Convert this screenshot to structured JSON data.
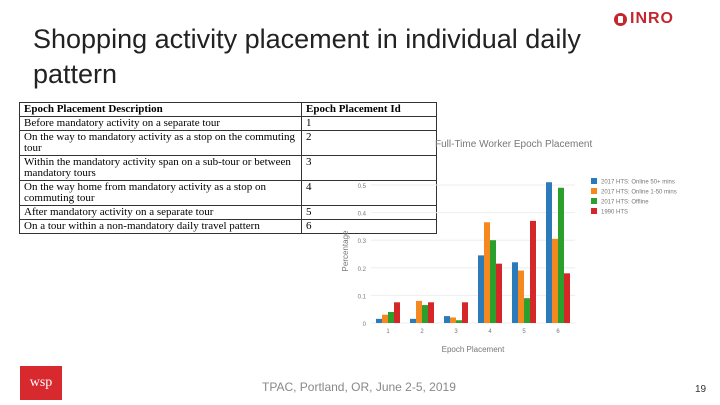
{
  "slide": {
    "title": "Shopping activity placement in individual daily pattern",
    "logo_text": "INRO",
    "wsp_logo_text": "wsp",
    "footer": "TPAC, Portland, OR, June 2-5, 2019",
    "page_number": "19"
  },
  "table": {
    "headers": [
      "Epoch Placement Description",
      "Epoch Placement Id"
    ],
    "rows": [
      {
        "desc": "Before mandatory activity on a separate tour",
        "id": "1"
      },
      {
        "desc": "On the way to mandatory activity as a stop on the commuting tour",
        "id": "2"
      },
      {
        "desc": "Within the mandatory activity span on a sub-tour or between mandatory tours",
        "id": "3"
      },
      {
        "desc": "On the way home from mandatory activity as a stop on commuting tour",
        "id": "4"
      },
      {
        "desc": "After mandatory activity on a separate tour",
        "id": "5"
      },
      {
        "desc": "On a tour within a non-mandatory daily travel pattern",
        "id": "6"
      }
    ]
  },
  "chart_data": {
    "type": "bar",
    "title": "Full-Time Worker Epoch Placement",
    "xlabel": "Epoch Placement",
    "ylabel": "Percentage",
    "categories": [
      "1",
      "2",
      "3",
      "4",
      "5",
      "6"
    ],
    "ylim": [
      0,
      0.5
    ],
    "yticks": [
      "0",
      "0.1",
      "0.2",
      "0.3",
      "0.4",
      "0.5"
    ],
    "legend_position": "right",
    "series": [
      {
        "name": "2017 HTS: Online 50+ mins",
        "color": "#2b7bba",
        "values": [
          0.015,
          0.015,
          0.025,
          0.245,
          0.22,
          0.51
        ]
      },
      {
        "name": "2017 HTS: Online 1-50 mins",
        "color": "#f5881f",
        "values": [
          0.03,
          0.08,
          0.02,
          0.365,
          0.19,
          0.305
        ]
      },
      {
        "name": "2017 HTS: Offline",
        "color": "#2ca02c",
        "values": [
          0.04,
          0.065,
          0.01,
          0.3,
          0.09,
          0.49
        ]
      },
      {
        "name": "1990 HTS",
        "color": "#d62728",
        "values": [
          0.075,
          0.075,
          0.075,
          0.215,
          0.37,
          0.18
        ]
      }
    ]
  }
}
